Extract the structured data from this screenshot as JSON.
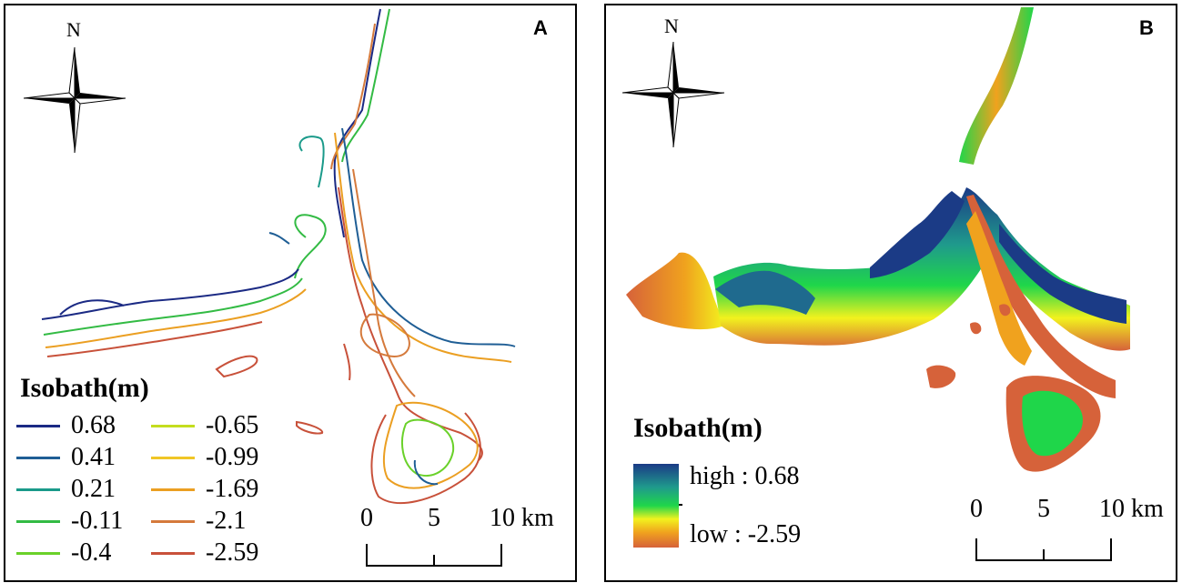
{
  "panelA": {
    "label": "A",
    "north": "N",
    "legend": {
      "title": "Isobath(m)",
      "items": [
        {
          "value": "0.68",
          "color": "#1b2a84"
        },
        {
          "value": "0.41",
          "color": "#1f5e95"
        },
        {
          "value": "0.21",
          "color": "#1a9a8a"
        },
        {
          "value": "-0.11",
          "color": "#33bb44"
        },
        {
          "value": "-0.4",
          "color": "#6ad12a"
        },
        {
          "value": "-0.65",
          "color": "#c4dd1e"
        },
        {
          "value": "-0.99",
          "color": "#f0c626"
        },
        {
          "value": "-1.69",
          "color": "#eb9f22"
        },
        {
          "value": "-2.1",
          "color": "#d57a3c"
        },
        {
          "value": "-2.59",
          "color": "#c8513a"
        }
      ]
    },
    "scale": {
      "ticks": [
        "0",
        "5",
        "10 km"
      ]
    }
  },
  "panelB": {
    "label": "B",
    "north": "N",
    "legend": {
      "title": "Isobath(m)",
      "high": "high : 0.68",
      "low": "low : -2.59",
      "ramp_colors": [
        "#1b3b86",
        "#1f9a8c",
        "#1fd64a",
        "#f2f21e",
        "#f0a21e",
        "#d6623a"
      ]
    },
    "scale": {
      "ticks": [
        "0",
        "5",
        "10 km"
      ]
    }
  }
}
